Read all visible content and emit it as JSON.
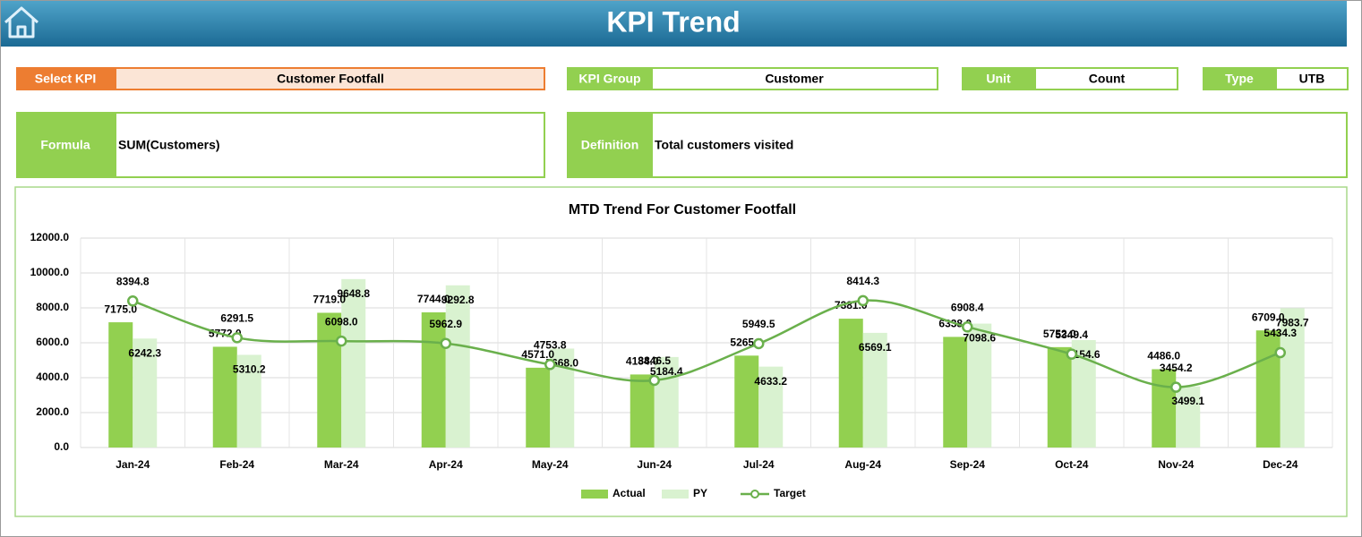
{
  "header": {
    "title": "KPI Trend"
  },
  "fields": {
    "select_kpi": {
      "label": "Select KPI",
      "value": "Customer Footfall"
    },
    "kpi_group": {
      "label": "KPI Group",
      "value": "Customer"
    },
    "unit": {
      "label": "Unit",
      "value": "Count"
    },
    "type": {
      "label": "Type",
      "value": "UTB"
    },
    "formula": {
      "label": "Formula",
      "value": "SUM(Customers)"
    },
    "definition": {
      "label": "Definition",
      "value": "Total customers visited"
    }
  },
  "chart_data": {
    "type": "bar",
    "title": "MTD Trend For Customer Footfall",
    "categories": [
      "Jan-24",
      "Feb-24",
      "Mar-24",
      "Apr-24",
      "May-24",
      "Jun-24",
      "Jul-24",
      "Aug-24",
      "Sep-24",
      "Oct-24",
      "Nov-24",
      "Dec-24"
    ],
    "series": [
      {
        "name": "Actual",
        "color": "#92d050",
        "type": "bar",
        "values": [
          7175,
          5772,
          7719,
          7744,
          4571,
          4184,
          5265,
          7381,
          6338,
          5752,
          4486,
          6709
        ],
        "value_labels": [
          "7175.0",
          "5772.0",
          "7719.0",
          "7744.0",
          "4571.0",
          "4184.0",
          "5265.0",
          "7381.0",
          "6338.0",
          "5752.0",
          "4486.0",
          "6709.0"
        ]
      },
      {
        "name": "PY",
        "color": "#d9f2d0",
        "type": "bar",
        "values": [
          6242.3,
          5310.2,
          9648.8,
          9292.8,
          5668,
          5184.4,
          4633.2,
          6569.1,
          7098.6,
          6154.6,
          3499.1,
          7983.7
        ],
        "value_labels": [
          "6242.3",
          "5310.2",
          "9648.8",
          "9292.8",
          "5668.0",
          "5184.4",
          "4633.2",
          "6569.1",
          "7098.6",
          "6154.6",
          "3499.1",
          "7983.7"
        ]
      },
      {
        "name": "Target",
        "color": "#6ab04c",
        "type": "line",
        "values": [
          8394.8,
          6291.5,
          6098,
          5962.9,
          4753.8,
          3846.5,
          5949.5,
          8414.3,
          6908.4,
          5349.4,
          3454.2,
          5434.3
        ],
        "value_labels": [
          "8394.8",
          "6291.5",
          "6098.0",
          "5962.9",
          "4753.8",
          "3846.5",
          "5949.5",
          "8414.3",
          "6908.4",
          "5349.4",
          "3454.2",
          "5434.3"
        ]
      }
    ],
    "ylim": [
      0,
      12000
    ],
    "yticks": [
      {
        "value": 0,
        "label": "0.0"
      },
      {
        "value": 2000,
        "label": "2000.0"
      },
      {
        "value": 4000,
        "label": "4000.0"
      },
      {
        "value": 6000,
        "label": "6000.0"
      },
      {
        "value": 8000,
        "label": "8000.0"
      },
      {
        "value": 10000,
        "label": "10000.0"
      },
      {
        "value": 12000,
        "label": "12000.0"
      }
    ],
    "grid": true,
    "legend": "bottom"
  }
}
